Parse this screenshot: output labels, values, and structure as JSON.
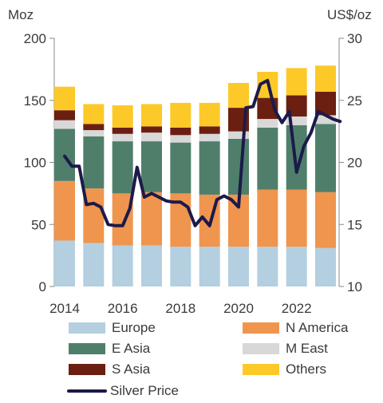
{
  "chart_data": {
    "type": "bar",
    "stacked": true,
    "ylabel_left": "Moz",
    "ylabel_right": "US$/oz",
    "ylim_left": [
      0,
      200
    ],
    "ylim_right": [
      10,
      30
    ],
    "yticks_left": [
      "0",
      "50",
      "100",
      "150",
      "200"
    ],
    "yticks_right": [
      "10",
      "15",
      "20",
      "25",
      "30"
    ],
    "xticks": [
      "2014",
      "2016",
      "2018",
      "2020",
      "2022"
    ],
    "categories": [
      "2014",
      "2015",
      "2016",
      "2017",
      "2018",
      "2019",
      "2020",
      "2021",
      "2022",
      "2023"
    ],
    "series": [
      {
        "name": "Europe",
        "color": "#b3cfe0",
        "values": [
          37,
          35,
          33,
          33,
          32,
          32,
          32,
          32,
          32,
          31
        ]
      },
      {
        "name": "N America",
        "color": "#f0954e",
        "values": [
          48,
          44,
          42,
          43,
          43,
          42,
          42,
          46,
          46,
          45
        ]
      },
      {
        "name": "E Asia",
        "color": "#4f7f6b",
        "values": [
          42,
          42,
          42,
          41,
          41,
          43,
          45,
          50,
          52,
          55
        ]
      },
      {
        "name": "M East",
        "color": "#d8d8d8",
        "values": [
          7,
          5,
          6,
          7,
          6,
          6,
          6,
          7,
          7,
          7
        ]
      },
      {
        "name": "S Asia",
        "color": "#6b1f10",
        "values": [
          8,
          5,
          5,
          5,
          6,
          6,
          19,
          17,
          17,
          19
        ]
      },
      {
        "name": "Others",
        "color": "#fcc928",
        "values": [
          19,
          16,
          18,
          18,
          20,
          19,
          20,
          21,
          22,
          21
        ]
      }
    ],
    "line": {
      "name": "Silver Price",
      "color": "#1c1a4a",
      "axis": "right",
      "x": [
        2014.0,
        2014.25,
        2014.5,
        2014.75,
        2015.0,
        2015.25,
        2015.5,
        2015.75,
        2016.0,
        2016.25,
        2016.5,
        2016.75,
        2017.0,
        2017.25,
        2017.5,
        2017.75,
        2018.0,
        2018.25,
        2018.5,
        2018.75,
        2019.0,
        2019.25,
        2019.5,
        2019.75,
        2020.0,
        2020.25,
        2020.5,
        2020.75,
        2021.0,
        2021.25,
        2021.5,
        2021.75,
        2022.0,
        2022.25,
        2022.5,
        2022.75,
        2023.0,
        2023.25,
        2023.5
      ],
      "values": [
        20.5,
        19.7,
        19.7,
        16.6,
        16.7,
        16.4,
        15.0,
        14.9,
        14.9,
        16.3,
        19.6,
        17.2,
        17.5,
        17.2,
        16.9,
        16.8,
        16.8,
        16.4,
        14.9,
        15.6,
        14.9,
        17.0,
        17.3,
        17.0,
        16.4,
        24.4,
        24.5,
        26.3,
        26.6,
        24.2,
        23.2,
        24.1,
        19.2,
        21.3,
        22.4,
        24.1,
        23.8,
        23.5,
        23.3
      ]
    },
    "legend": {
      "placement": "bottom",
      "items": [
        "Europe",
        "N America",
        "E Asia",
        "M East",
        "S Asia",
        "Others",
        "Silver Price"
      ]
    }
  }
}
